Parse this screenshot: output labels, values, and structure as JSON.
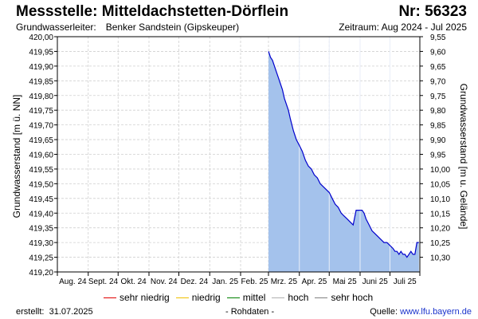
{
  "header": {
    "title": "Messstelle: Mitteldachstetten-Dörflein",
    "number": "Nr: 56323",
    "aquifer_label": "Grundwasserleiter:",
    "aquifer_value": "Benker Sandstein (Gipskeuper)",
    "period": "Zeitraum: Aug 2024 - Jul 2025"
  },
  "footer": {
    "created_label": "erstellt:",
    "created_date": "31.07.2025",
    "data_note": "- Rohdaten -",
    "source_label": "Quelle:",
    "source_url": "www.lfu.bayern.de"
  },
  "legend": [
    {
      "label": "sehr niedrig",
      "color": "#e00000"
    },
    {
      "label": "niedrig",
      "color": "#f0c000"
    },
    {
      "label": "mittel",
      "color": "#008000"
    },
    {
      "label": "hoch",
      "color": "#b0b0b0"
    },
    {
      "label": "sehr hoch",
      "color": "#808080"
    }
  ],
  "colors": {
    "series_line": "#0000cc",
    "series_fill": "#a4c2ec",
    "grid": "#d0d0d0",
    "axis": "#000000"
  },
  "chart_data": {
    "type": "area",
    "ylabel": "Grundwasserstand [m ü. NN]",
    "ylabel_right": "Grundwasserstand [m u. Gelände]",
    "ylim": [
      419.2,
      420.0
    ],
    "ylim_right": [
      9.55,
      10.35
    ],
    "right_axis_inverted": true,
    "y_ticks": [
      "420,00",
      "419,95",
      "419,90",
      "419,85",
      "419,80",
      "419,75",
      "419,70",
      "419,65",
      "419,60",
      "419,55",
      "419,50",
      "419,45",
      "419,40",
      "419,35",
      "419,30",
      "419,25",
      "419,20"
    ],
    "y_ticks_right": [
      "9,55",
      "9,60",
      "9,65",
      "9,70",
      "9,75",
      "9,80",
      "9,85",
      "9,90",
      "9,95",
      "10,00",
      "10,05",
      "10,10",
      "10,15",
      "10,20",
      "10,25",
      "10,30"
    ],
    "x_tick_labels": [
      "Aug. 24",
      "Sept. 24",
      "Okt. 24",
      "Nov. 24",
      "Dez. 24",
      "Jan. 25",
      "Feb. 25",
      "Mrz. 25",
      "Apr. 25",
      "Mai 25",
      "Juni 25",
      "Juli 25"
    ],
    "x_range": [
      "2024-08-01",
      "2025-07-31"
    ],
    "grid": true,
    "legend_position": "bottom",
    "series": [
      {
        "x": [
          "2025-03-01",
          "2025-03-02",
          "2025-03-03",
          "2025-03-05",
          "2025-03-07",
          "2025-03-09",
          "2025-03-11",
          "2025-03-13",
          "2025-03-15",
          "2025-03-17",
          "2025-03-19",
          "2025-03-21",
          "2025-03-23",
          "2025-03-26",
          "2025-03-29",
          "2025-04-01",
          "2025-04-04",
          "2025-04-07",
          "2025-04-10",
          "2025-04-13",
          "2025-04-16",
          "2025-04-19",
          "2025-04-22",
          "2025-04-25",
          "2025-04-28",
          "2025-05-01",
          "2025-05-04",
          "2025-05-07",
          "2025-05-10",
          "2025-05-13",
          "2025-05-16",
          "2025-05-19",
          "2025-05-22",
          "2025-05-25",
          "2025-05-28",
          "2025-05-30",
          "2025-06-01",
          "2025-06-03",
          "2025-06-05",
          "2025-06-07",
          "2025-06-10",
          "2025-06-13",
          "2025-06-16",
          "2025-06-19",
          "2025-06-22",
          "2025-06-25",
          "2025-06-28",
          "2025-07-01",
          "2025-07-04",
          "2025-07-06",
          "2025-07-08",
          "2025-07-10",
          "2025-07-12",
          "2025-07-14",
          "2025-07-16",
          "2025-07-18",
          "2025-07-20",
          "2025-07-22",
          "2025-07-24",
          "2025-07-26",
          "2025-07-28",
          "2025-07-30"
        ],
        "values": [
          419.95,
          419.94,
          419.93,
          419.92,
          419.9,
          419.88,
          419.86,
          419.84,
          419.82,
          419.79,
          419.77,
          419.75,
          419.72,
          419.68,
          419.65,
          419.63,
          419.61,
          419.58,
          419.56,
          419.55,
          419.53,
          419.52,
          419.5,
          419.49,
          419.48,
          419.47,
          419.45,
          419.43,
          419.42,
          419.4,
          419.39,
          419.38,
          419.37,
          419.36,
          419.41,
          419.41,
          419.41,
          419.41,
          419.4,
          419.38,
          419.36,
          419.34,
          419.33,
          419.32,
          419.31,
          419.3,
          419.3,
          419.29,
          419.28,
          419.27,
          419.27,
          419.26,
          419.27,
          419.26,
          419.26,
          419.25,
          419.26,
          419.27,
          419.26,
          419.26,
          419.3,
          419.3
        ]
      }
    ]
  }
}
